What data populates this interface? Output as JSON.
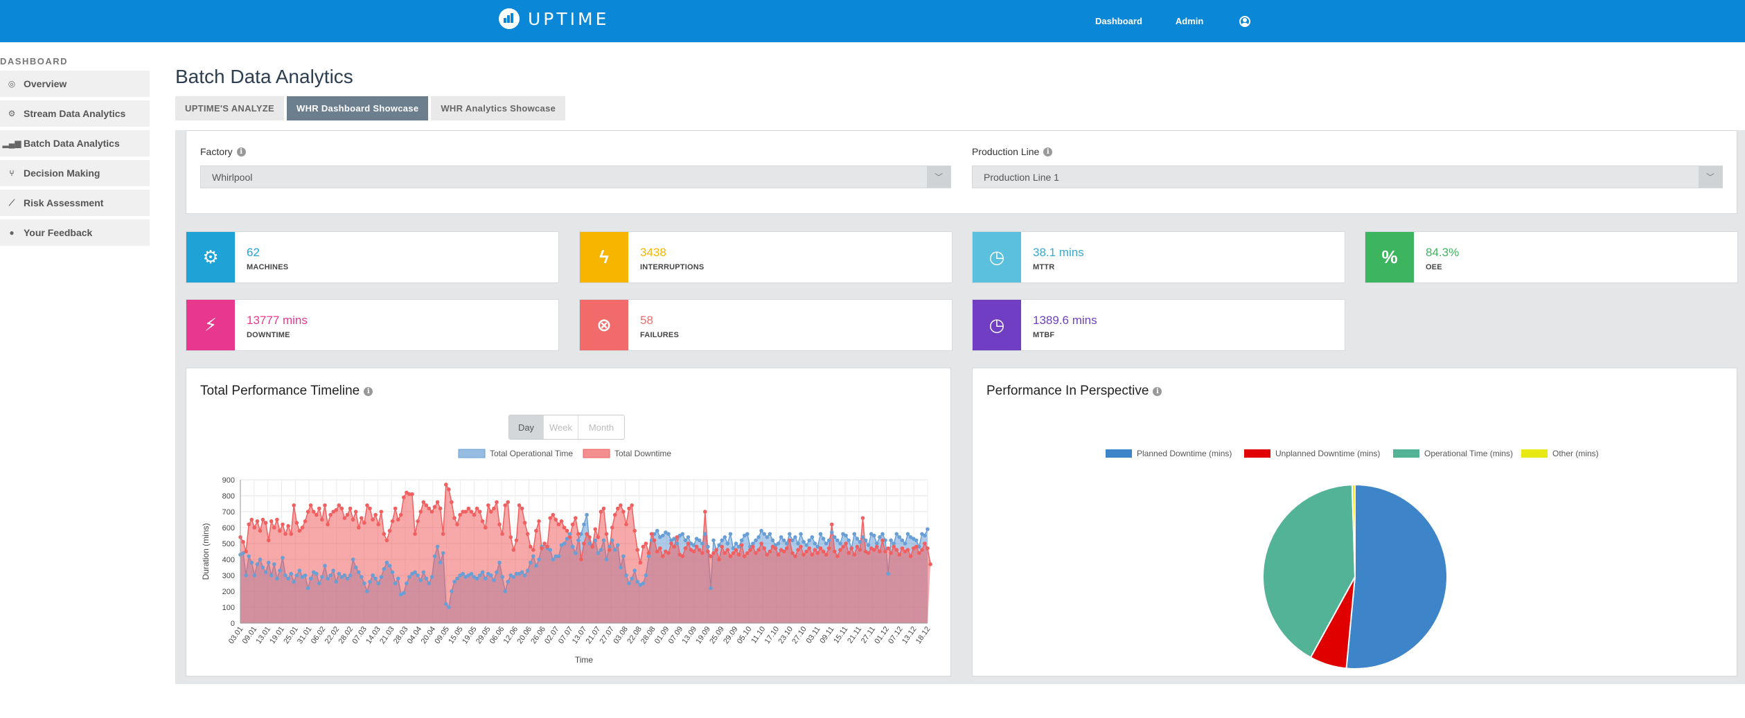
{
  "header": {
    "app_name": "UPTIME",
    "nav": [
      {
        "label": "Dashboard"
      },
      {
        "label": "Admin"
      }
    ]
  },
  "sidebar": {
    "section": "DASHBOARD",
    "items": [
      {
        "label": "Overview",
        "icon": "target-icon"
      },
      {
        "label": "Stream Data Analytics",
        "icon": "gears-icon"
      },
      {
        "label": "Batch Data Analytics",
        "icon": "bar-chart-icon"
      },
      {
        "label": "Decision Making",
        "icon": "branch-icon"
      },
      {
        "label": "Risk Assessment",
        "icon": "line-chart-icon"
      },
      {
        "label": "Your Feedback",
        "icon": "user-icon"
      }
    ]
  },
  "page": {
    "title": "Batch Data Analytics",
    "tabs": [
      {
        "label": "UPTIME'S ANALYZE",
        "active": false
      },
      {
        "label": "WHR Dashboard Showcase",
        "active": true
      },
      {
        "label": "WHR Analytics Showcase",
        "active": false
      }
    ]
  },
  "filters": {
    "factory": {
      "label": "Factory",
      "value": "Whirlpool"
    },
    "production_line": {
      "label": "Production Line",
      "value": "Production Line 1"
    }
  },
  "stats": [
    {
      "value": "62",
      "label": "MACHINES",
      "color": "#1fa3d6",
      "icon": "cogs-icon"
    },
    {
      "value": "3438",
      "label": "INTERRUPTIONS",
      "color": "#f7b500",
      "icon": "bolt-icon"
    },
    {
      "value": "38.1 mins",
      "label": "MTTR",
      "color": "#5bc0de",
      "icon": "clock-icon"
    },
    {
      "value": "84.3%",
      "label": "OEE",
      "color": "#3cb55e",
      "icon": "percent-icon"
    },
    {
      "value": "13777 mins",
      "label": "DOWNTIME",
      "color": "#e8388e",
      "icon": "plug-icon"
    },
    {
      "value": "58",
      "label": "FAILURES",
      "color": "#f26b6b",
      "icon": "x-circle-icon"
    },
    {
      "value": "1389.6 mins",
      "label": "MTBF",
      "color": "#6f3ec3",
      "icon": "clock-icon"
    }
  ],
  "timeline": {
    "title": "Total Performance Timeline",
    "granularity": [
      {
        "label": "Day",
        "active": true
      },
      {
        "label": "Week",
        "active": false
      },
      {
        "label": "Month",
        "active": false
      }
    ]
  },
  "perspective": {
    "title": "Performance In Perspective"
  },
  "chart_data": [
    {
      "type": "area",
      "title": "Total Performance Timeline",
      "xlabel": "Time",
      "ylabel": "Duration (mins)",
      "ylim": [
        0,
        900
      ],
      "yticks": [
        0,
        100,
        200,
        300,
        400,
        500,
        600,
        700,
        800,
        900
      ],
      "grid": true,
      "legend_position": "top",
      "x_tick_labels": [
        "03.01",
        "09.01",
        "13.01",
        "19.01",
        "25.01",
        "31.01",
        "06.02",
        "22.02",
        "28.02",
        "07.03",
        "14.03",
        "21.03",
        "28.03",
        "04.04",
        "20.04",
        "09.05",
        "15.05",
        "19.05",
        "29.05",
        "06.06",
        "12.06",
        "20.06",
        "26.06",
        "02.07",
        "07.07",
        "13.07",
        "21.07",
        "27.07",
        "03.08",
        "22.08",
        "28.08",
        "01.09",
        "07.09",
        "13.09",
        "19.09",
        "25.09",
        "29.09",
        "05.10",
        "11.10",
        "17.10",
        "23.10",
        "27.10",
        "03.11",
        "09.11",
        "15.11",
        "21.11",
        "27.11",
        "01.12",
        "07.12",
        "13.12",
        "18.12"
      ],
      "series": [
        {
          "name": "Total Operational Time",
          "color": "#6a9fd6",
          "values": [
            430,
            440,
            300,
            420,
            380,
            300,
            370,
            400,
            350,
            320,
            380,
            300,
            370,
            280,
            330,
            410,
            300,
            280,
            310,
            260,
            300,
            330,
            290,
            300,
            220,
            280,
            320,
            310,
            250,
            290,
            360,
            280,
            300,
            330,
            260,
            310,
            290,
            300,
            280,
            300,
            400,
            350,
            320,
            290,
            250,
            200,
            260,
            300,
            280,
            250,
            290,
            340,
            380,
            360,
            320,
            250,
            280,
            180,
            190,
            250,
            290,
            310,
            320,
            300,
            270,
            320,
            280,
            250,
            290,
            420,
            480,
            380,
            440,
            120,
            100,
            200,
            260,
            280,
            300,
            310,
            290,
            300,
            310,
            290,
            280,
            300,
            320,
            280,
            310,
            300,
            270,
            320,
            380,
            290,
            200,
            260,
            300,
            290,
            310,
            310,
            320,
            300,
            330,
            380,
            420,
            360,
            400,
            480,
            500,
            470,
            460,
            400,
            420,
            420,
            490,
            500,
            530,
            560,
            480,
            440,
            520,
            560,
            620,
            680,
            500,
            480,
            520,
            440,
            460,
            520,
            400,
            480,
            520,
            460,
            490,
            350,
            420,
            300,
            250,
            280,
            330,
            260,
            240,
            250,
            300,
            420,
            520,
            560,
            580,
            540,
            550,
            570,
            560,
            520,
            530,
            500,
            550,
            560,
            520,
            540,
            500,
            490,
            530,
            520,
            500,
            560,
            480,
            220,
            520,
            460,
            490,
            520,
            540,
            500,
            560,
            470,
            500,
            480,
            520,
            550,
            560,
            480,
            500,
            520,
            540,
            580,
            560,
            540,
            560,
            520,
            490,
            500,
            540,
            520,
            500,
            560,
            520,
            540,
            500,
            560,
            510,
            490,
            520,
            540,
            500,
            480,
            560,
            530,
            500,
            520,
            570,
            540,
            520,
            500,
            560,
            550,
            520,
            470,
            560,
            530,
            510,
            540,
            520,
            490,
            560,
            550,
            500,
            540,
            560,
            520,
            310,
            520,
            500,
            560,
            540,
            520,
            500,
            560,
            540,
            530,
            520,
            480,
            560,
            550,
            590
          ]
        },
        {
          "name": "Total Downtime",
          "color": "#f06060",
          "values": [
            540,
            510,
            450,
            620,
            650,
            600,
            640,
            580,
            650,
            630,
            520,
            640,
            600,
            650,
            580,
            620,
            560,
            610,
            560,
            740,
            630,
            580,
            600,
            640,
            700,
            740,
            700,
            680,
            720,
            650,
            740,
            620,
            680,
            700,
            710,
            740,
            720,
            660,
            680,
            720,
            650,
            700,
            600,
            660,
            630,
            740,
            720,
            650,
            680,
            620,
            700,
            560,
            520,
            580,
            640,
            720,
            650,
            680,
            790,
            820,
            810,
            810,
            560,
            640,
            700,
            760,
            740,
            720,
            700,
            730,
            760,
            720,
            560,
            870,
            840,
            760,
            660,
            620,
            680,
            700,
            700,
            720,
            700,
            680,
            720,
            700,
            640,
            600,
            740,
            700,
            720,
            760,
            620,
            560,
            740,
            760,
            540,
            460,
            520,
            740,
            720,
            630,
            560,
            480,
            460,
            580,
            640,
            470,
            500,
            480,
            660,
            680,
            650,
            620,
            640,
            600,
            580,
            540,
            620,
            660,
            560,
            400,
            500,
            560,
            540,
            480,
            590,
            540,
            700,
            720,
            560,
            460,
            600,
            680,
            720,
            740,
            700,
            620,
            720,
            740,
            580,
            460,
            380,
            480,
            500,
            440,
            560,
            520,
            450,
            470,
            420,
            450,
            440,
            500,
            480,
            540,
            430,
            420,
            470,
            500,
            460,
            450,
            480,
            460,
            440,
            700,
            450,
            420,
            440,
            460,
            400,
            480,
            440,
            460,
            420,
            440,
            460,
            430,
            490,
            420,
            440,
            460,
            480,
            440,
            460,
            500,
            470,
            430,
            450,
            480,
            470,
            430,
            460,
            450,
            470,
            520,
            440,
            420,
            460,
            480,
            430,
            450,
            470,
            430,
            460,
            440,
            470,
            450,
            430,
            470,
            620,
            450,
            420,
            460,
            480,
            500,
            440,
            470,
            430,
            480,
            460,
            660,
            450,
            440,
            470,
            460,
            480,
            450,
            520,
            450,
            470,
            440,
            480,
            460,
            430,
            470,
            450,
            460,
            420,
            470,
            480,
            440,
            460,
            500,
            470,
            370
          ]
        }
      ]
    },
    {
      "type": "pie",
      "title": "Performance In Perspective",
      "legend_position": "top",
      "labels": [
        "Planned Downtime (mins)",
        "Unplanned Downtime (mins)",
        "Operational Time (mins)",
        "Other (mins)"
      ],
      "values": [
        51.5,
        6.5,
        41.5,
        0.5
      ],
      "colors": [
        "#3d84c8",
        "#e00000",
        "#52b396",
        "#e8e814"
      ]
    }
  ]
}
